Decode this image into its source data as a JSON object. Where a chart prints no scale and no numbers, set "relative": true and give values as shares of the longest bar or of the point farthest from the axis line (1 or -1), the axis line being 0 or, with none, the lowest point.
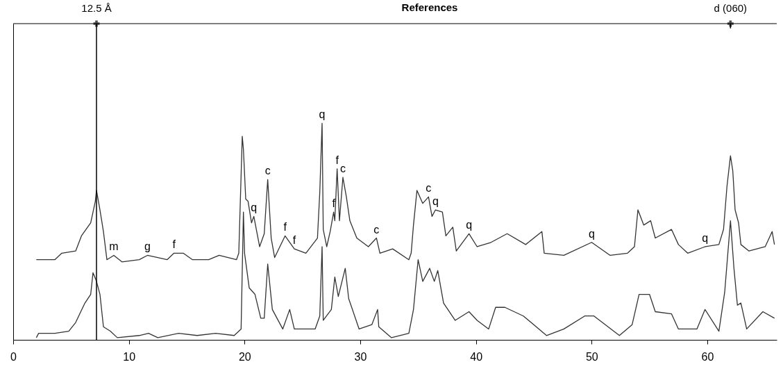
{
  "chart_data": {
    "type": "line",
    "title": "References",
    "relative": true,
    "xlim": [
      0,
      66
    ],
    "xticks": [
      0,
      10,
      20,
      30,
      40,
      50,
      60
    ],
    "grid": false,
    "legend": false,
    "marker": "none",
    "line_style": "solid",
    "ref_lines": [
      {
        "axis": "x",
        "value": 7.2,
        "label": "12.5 Å",
        "color": "#000000",
        "line_style": "solid"
      },
      {
        "axis": "x",
        "value": 62,
        "label": "d (060)",
        "color": "#000000"
      }
    ],
    "annotations": [
      {
        "text": "m",
        "x": 8.7,
        "y": 0.39
      },
      {
        "text": "g",
        "x": 11.6,
        "y": 0.39
      },
      {
        "text": "f",
        "x": 13.9,
        "y": 0.4
      },
      {
        "text": "q",
        "x": 20.8,
        "y": 0.57
      },
      {
        "text": "c",
        "x": 22.0,
        "y": 0.74
      },
      {
        "text": "f",
        "x": 23.5,
        "y": 0.48
      },
      {
        "text": "f",
        "x": 24.3,
        "y": 0.42
      },
      {
        "text": "q",
        "x": 26.7,
        "y": 1.0
      },
      {
        "text": "f",
        "x": 28.0,
        "y": 0.79
      },
      {
        "text": "c",
        "x": 28.5,
        "y": 0.75
      },
      {
        "text": "f",
        "x": 27.7,
        "y": 0.59
      },
      {
        "text": "c",
        "x": 31.4,
        "y": 0.47
      },
      {
        "text": "c",
        "x": 35.9,
        "y": 0.66
      },
      {
        "text": "q",
        "x": 36.5,
        "y": 0.6
      },
      {
        "text": "q",
        "x": 39.4,
        "y": 0.49
      },
      {
        "text": "q",
        "x": 50.0,
        "y": 0.45
      },
      {
        "text": "q",
        "x": 59.8,
        "y": 0.43
      }
    ],
    "series": [
      {
        "color": "#333333",
        "x": [
          2.0,
          3.6,
          4.2,
          5.4,
          5.9,
          6.7,
          7.1,
          7.2,
          7.5,
          7.8,
          8.1,
          8.7,
          9.4,
          10.9,
          11.6,
          12.5,
          13.3,
          13.9,
          14.7,
          15.5,
          16.9,
          17.8,
          19.3,
          19.5,
          19.8,
          19.9,
          20.1,
          20.3,
          20.6,
          20.8,
          21.3,
          21.7,
          22.0,
          22.3,
          22.6,
          23.5,
          24.3,
          25.3,
          26.3,
          26.5,
          26.7,
          26.8,
          27.1,
          27.4,
          27.7,
          27.8,
          28.0,
          28.2,
          28.5,
          28.8,
          29.1,
          29.7,
          30.7,
          31.4,
          31.7,
          32.8,
          34.2,
          34.4,
          34.6,
          34.9,
          35.4,
          35.9,
          36.2,
          36.5,
          37.1,
          37.4,
          38.0,
          38.3,
          39.4,
          40.1,
          41.3,
          42.7,
          44.3,
          45.7,
          45.9,
          47.6,
          50.0,
          51.6,
          53.1,
          53.7,
          54.0,
          54.5,
          55.1,
          55.5,
          56.9,
          57.5,
          58.3,
          59.8,
          61.0,
          61.4,
          61.7,
          62.0,
          62.2,
          62.4,
          62.7,
          62.9,
          63.6,
          65.0,
          65.6,
          65.8
        ],
        "values": [
          0.37,
          0.37,
          0.4,
          0.41,
          0.48,
          0.54,
          0.64,
          0.69,
          0.6,
          0.5,
          0.37,
          0.39,
          0.36,
          0.37,
          0.39,
          0.38,
          0.37,
          0.4,
          0.4,
          0.37,
          0.37,
          0.39,
          0.37,
          0.4,
          0.94,
          0.88,
          0.65,
          0.64,
          0.54,
          0.57,
          0.43,
          0.49,
          0.74,
          0.47,
          0.38,
          0.48,
          0.42,
          0.4,
          0.47,
          0.68,
          1.0,
          0.51,
          0.43,
          0.5,
          0.59,
          0.55,
          0.79,
          0.55,
          0.75,
          0.66,
          0.55,
          0.47,
          0.43,
          0.47,
          0.4,
          0.42,
          0.37,
          0.4,
          0.53,
          0.69,
          0.63,
          0.66,
          0.57,
          0.6,
          0.59,
          0.48,
          0.52,
          0.41,
          0.49,
          0.43,
          0.45,
          0.49,
          0.44,
          0.5,
          0.4,
          0.39,
          0.45,
          0.39,
          0.4,
          0.43,
          0.6,
          0.53,
          0.55,
          0.47,
          0.51,
          0.44,
          0.4,
          0.43,
          0.44,
          0.51,
          0.71,
          0.85,
          0.78,
          0.6,
          0.54,
          0.44,
          0.41,
          0.43,
          0.5,
          0.44
        ]
      },
      {
        "color": "#333333",
        "x": [
          2.0,
          2.2,
          3.6,
          4.8,
          5.4,
          6.2,
          6.7,
          6.9,
          7.2,
          7.5,
          7.8,
          8.4,
          9.0,
          10.9,
          11.7,
          12.5,
          14.3,
          15.9,
          17.5,
          19.1,
          19.7,
          19.9,
          20.0,
          20.4,
          20.9,
          21.4,
          21.7,
          22.0,
          22.4,
          23.3,
          23.9,
          24.3,
          26.1,
          26.5,
          26.7,
          26.8,
          27.5,
          27.8,
          28.1,
          28.7,
          29.0,
          29.9,
          31.0,
          31.5,
          31.6,
          32.7,
          34.2,
          34.6,
          35.0,
          35.4,
          36.0,
          36.4,
          36.7,
          37.2,
          38.2,
          39.4,
          40.1,
          41.1,
          41.7,
          42.5,
          44.1,
          46.1,
          47.6,
          49.4,
          50.2,
          52.4,
          53.5,
          54.1,
          55.0,
          55.5,
          56.9,
          57.5,
          59.1,
          59.8,
          61.0,
          61.5,
          62.0,
          62.3,
          62.6,
          62.9,
          63.4,
          64.8,
          65.8
        ],
        "values": [
          0.01,
          0.03,
          0.03,
          0.04,
          0.08,
          0.17,
          0.21,
          0.31,
          0.27,
          0.21,
          0.06,
          0.04,
          0.01,
          0.02,
          0.03,
          0.01,
          0.03,
          0.02,
          0.03,
          0.02,
          0.05,
          0.59,
          0.4,
          0.24,
          0.21,
          0.1,
          0.1,
          0.35,
          0.14,
          0.05,
          0.14,
          0.05,
          0.05,
          0.11,
          0.43,
          0.09,
          0.14,
          0.29,
          0.2,
          0.33,
          0.19,
          0.05,
          0.07,
          0.14,
          0.06,
          0.01,
          0.03,
          0.14,
          0.37,
          0.27,
          0.33,
          0.27,
          0.32,
          0.17,
          0.09,
          0.13,
          0.09,
          0.05,
          0.15,
          0.15,
          0.11,
          0.02,
          0.05,
          0.11,
          0.11,
          0.02,
          0.07,
          0.21,
          0.21,
          0.13,
          0.12,
          0.05,
          0.05,
          0.14,
          0.04,
          0.22,
          0.55,
          0.33,
          0.16,
          0.17,
          0.05,
          0.13,
          0.1
        ]
      }
    ]
  }
}
